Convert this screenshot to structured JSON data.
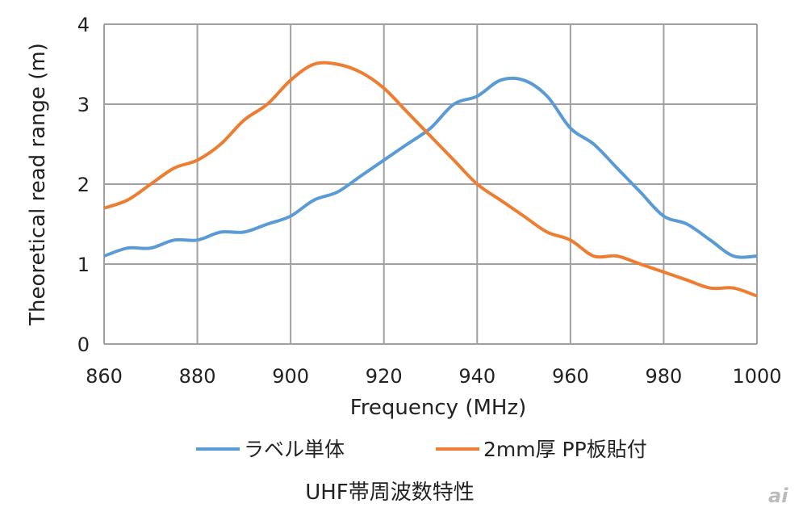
{
  "chart_data": {
    "type": "line",
    "title": "UHF帯周波数特性",
    "xlabel": "Frequency (MHz)",
    "ylabel": "Theoretical read range (m)",
    "xlim": [
      860,
      1000
    ],
    "ylim": [
      0,
      4
    ],
    "x_ticks": [
      860,
      880,
      900,
      920,
      940,
      960,
      980,
      1000
    ],
    "y_ticks": [
      0,
      1,
      2,
      3,
      4
    ],
    "grid": true,
    "legend_position": "bottom",
    "x": [
      860,
      865,
      870,
      875,
      880,
      885,
      890,
      895,
      900,
      905,
      910,
      915,
      920,
      925,
      930,
      935,
      940,
      945,
      950,
      955,
      960,
      965,
      970,
      975,
      980,
      985,
      990,
      995,
      1000
    ],
    "series": [
      {
        "name": "ラベル単体",
        "color": "#5B9BD5",
        "values": [
          1.1,
          1.2,
          1.2,
          1.3,
          1.3,
          1.4,
          1.4,
          1.5,
          1.6,
          1.8,
          1.9,
          2.1,
          2.3,
          2.5,
          2.7,
          3.0,
          3.1,
          3.3,
          3.3,
          3.1,
          2.7,
          2.5,
          2.2,
          1.9,
          1.6,
          1.5,
          1.3,
          1.1,
          1.1
        ]
      },
      {
        "name": "2mm厚 PP板貼付",
        "color": "#ED7D31",
        "values": [
          1.7,
          1.8,
          2.0,
          2.2,
          2.3,
          2.5,
          2.8,
          3.0,
          3.3,
          3.5,
          3.5,
          3.4,
          3.2,
          2.9,
          2.6,
          2.3,
          2.0,
          1.8,
          1.6,
          1.4,
          1.3,
          1.1,
          1.1,
          1.0,
          0.9,
          0.8,
          0.7,
          0.7,
          0.6
        ]
      }
    ]
  },
  "watermark": "ai"
}
